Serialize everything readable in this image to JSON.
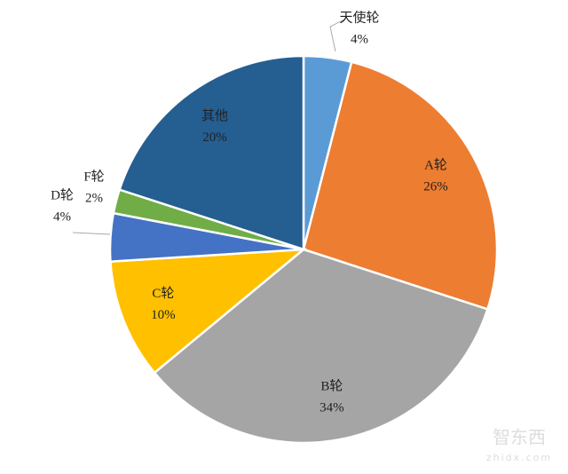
{
  "chart_data": {
    "type": "pie",
    "categories": [
      "天使轮",
      "A轮",
      "B轮",
      "C轮",
      "D轮",
      "F轮",
      "其他"
    ],
    "values": [
      4,
      26,
      34,
      10,
      4,
      2,
      20
    ],
    "value_labels": [
      "4%",
      "26%",
      "34%",
      "10%",
      "4%",
      "2%",
      "20%"
    ],
    "colors": [
      "#5b9bd5",
      "#ed7d31",
      "#a5a5a5",
      "#ffc000",
      "#4472c4",
      "#70ad47",
      "#255e91"
    ]
  },
  "watermark": {
    "name": "智东西",
    "url": "zhidx.com"
  }
}
